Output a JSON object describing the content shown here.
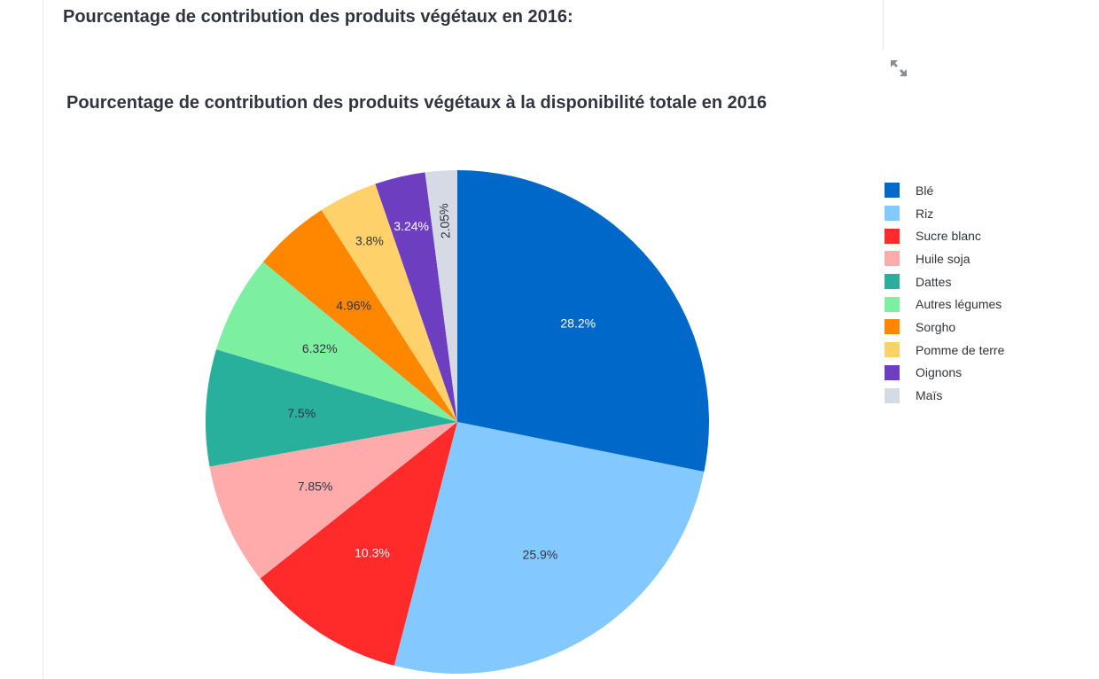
{
  "page": {
    "heading": "Pourcentage de contribution des produits végétaux en 2016:",
    "fullscreen_icon": "expand-arrows-icon"
  },
  "chart_data": {
    "type": "pie",
    "title": "Pourcentage de contribution des produits végétaux à la disponibilité totale en 2016",
    "legend_position": "right",
    "direction": "clockwise",
    "sort": "descending",
    "categories": [
      "Blé",
      "Riz",
      "Sucre blanc",
      "Huile soja",
      "Dattes",
      "Autres légumes",
      "Sorgho",
      "Pomme de terre",
      "Oignons",
      "Maïs"
    ],
    "values": [
      28.2,
      25.9,
      10.3,
      7.85,
      7.5,
      6.32,
      4.96,
      3.8,
      3.24,
      2.05
    ],
    "labels": [
      "28.2%",
      "25.9%",
      "10.3%",
      "7.85%",
      "7.5%",
      "6.32%",
      "4.96%",
      "3.8%",
      "3.24%",
      "2.05%"
    ],
    "label_colors": [
      "#ffffff",
      "#31333f",
      "#ffffff",
      "#31333f",
      "#31333f",
      "#31333f",
      "#31333f",
      "#31333f",
      "#ffffff",
      "#31333f"
    ],
    "colors": [
      "#0068c9",
      "#83c9ff",
      "#ff2b2b",
      "#ffabab",
      "#29b09d",
      "#7defa1",
      "#ff8700",
      "#ffd16a",
      "#6d3fc0",
      "#d5dae5"
    ]
  }
}
